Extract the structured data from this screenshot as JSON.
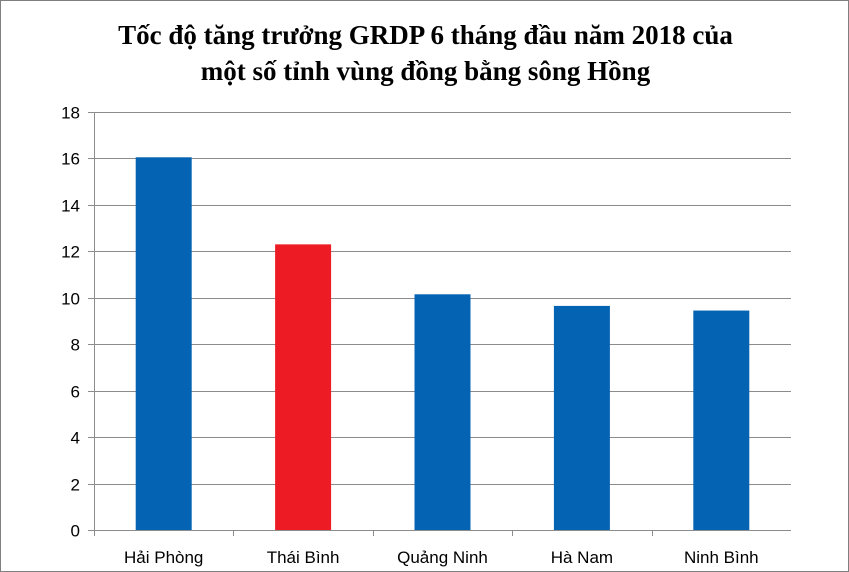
{
  "chart_data": {
    "type": "bar",
    "title_lines": [
      "Tốc độ tăng trưởng GRDP 6 tháng đầu năm 2018 của",
      "một số tỉnh vùng đồng bằng sông Hồng"
    ],
    "categories": [
      "Hải Phòng",
      "Thái Bình",
      "Quảng Ninh",
      "Hà Nam",
      "Ninh Bình"
    ],
    "values": [
      16.05,
      12.3,
      10.15,
      9.65,
      9.45
    ],
    "bar_colors": [
      "#0563b4",
      "#ed1c24",
      "#0563b4",
      "#0563b4",
      "#0563b4"
    ],
    "ylim": [
      0,
      18
    ],
    "yticks": [
      0,
      2,
      4,
      6,
      8,
      10,
      12,
      14,
      16,
      18
    ],
    "grid": true,
    "legend": "none",
    "xlabel": "",
    "ylabel": ""
  }
}
